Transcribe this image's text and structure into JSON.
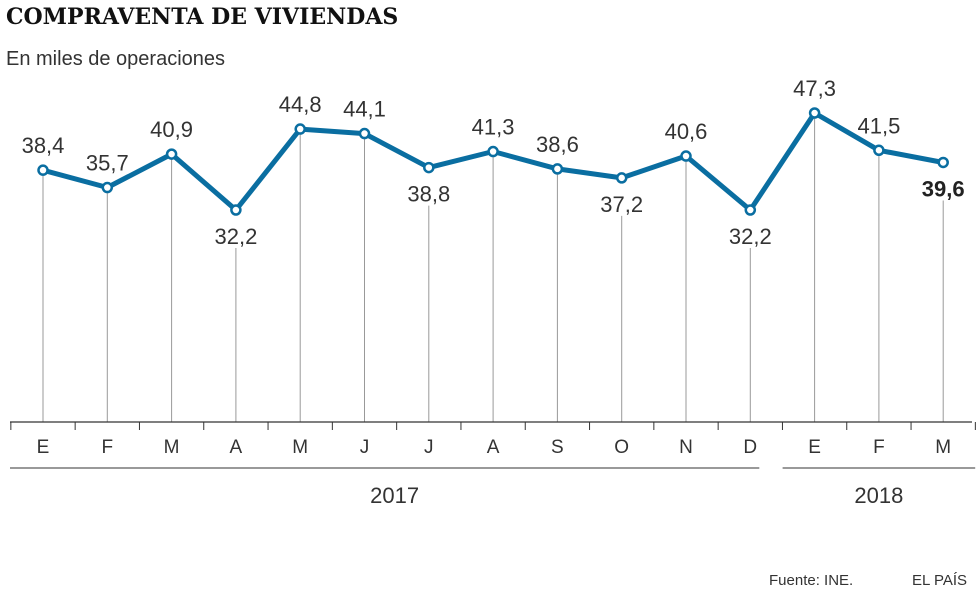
{
  "header": {
    "title": "COMPRAVENTA DE VIVIENDAS",
    "subtitle": "En miles de operaciones"
  },
  "footer": {
    "source": "Fuente: INE.",
    "brand": "EL PAÍS"
  },
  "colors": {
    "line": "#0a6ea1",
    "marker_fill": "#ffffff",
    "axis": "#333333",
    "grid": "#999999"
  },
  "chart_data": {
    "type": "line",
    "title": "COMPRAVENTA DE VIVIENDAS",
    "subtitle": "En miles de operaciones",
    "xlabel": "",
    "ylabel": "",
    "categories": [
      "E",
      "F",
      "M",
      "A",
      "M",
      "J",
      "J",
      "A",
      "S",
      "O",
      "N",
      "D",
      "E",
      "F",
      "M"
    ],
    "years": [
      {
        "label": "2017",
        "from": 0,
        "to": 11
      },
      {
        "label": "2018",
        "from": 12,
        "to": 14
      }
    ],
    "series": [
      {
        "values": [
          38.4,
          35.7,
          40.9,
          32.2,
          44.8,
          44.1,
          38.8,
          41.3,
          38.6,
          37.2,
          40.6,
          32.2,
          47.3,
          41.5,
          39.6
        ],
        "labels": [
          "38,4",
          "35,7",
          "40,9",
          "32,2",
          "44,8",
          "44,1",
          "38,8",
          "41,3",
          "38,6",
          "37,2",
          "40,6",
          "32,2",
          "47,3",
          "41,5",
          "39,6"
        ],
        "label_position": [
          "above",
          "above",
          "above",
          "below",
          "above",
          "above",
          "below",
          "above",
          "above",
          "below",
          "above",
          "below",
          "above",
          "above",
          "below"
        ],
        "highlight_last": true
      }
    ],
    "grid": "vertical drop lines",
    "legend": "none"
  }
}
